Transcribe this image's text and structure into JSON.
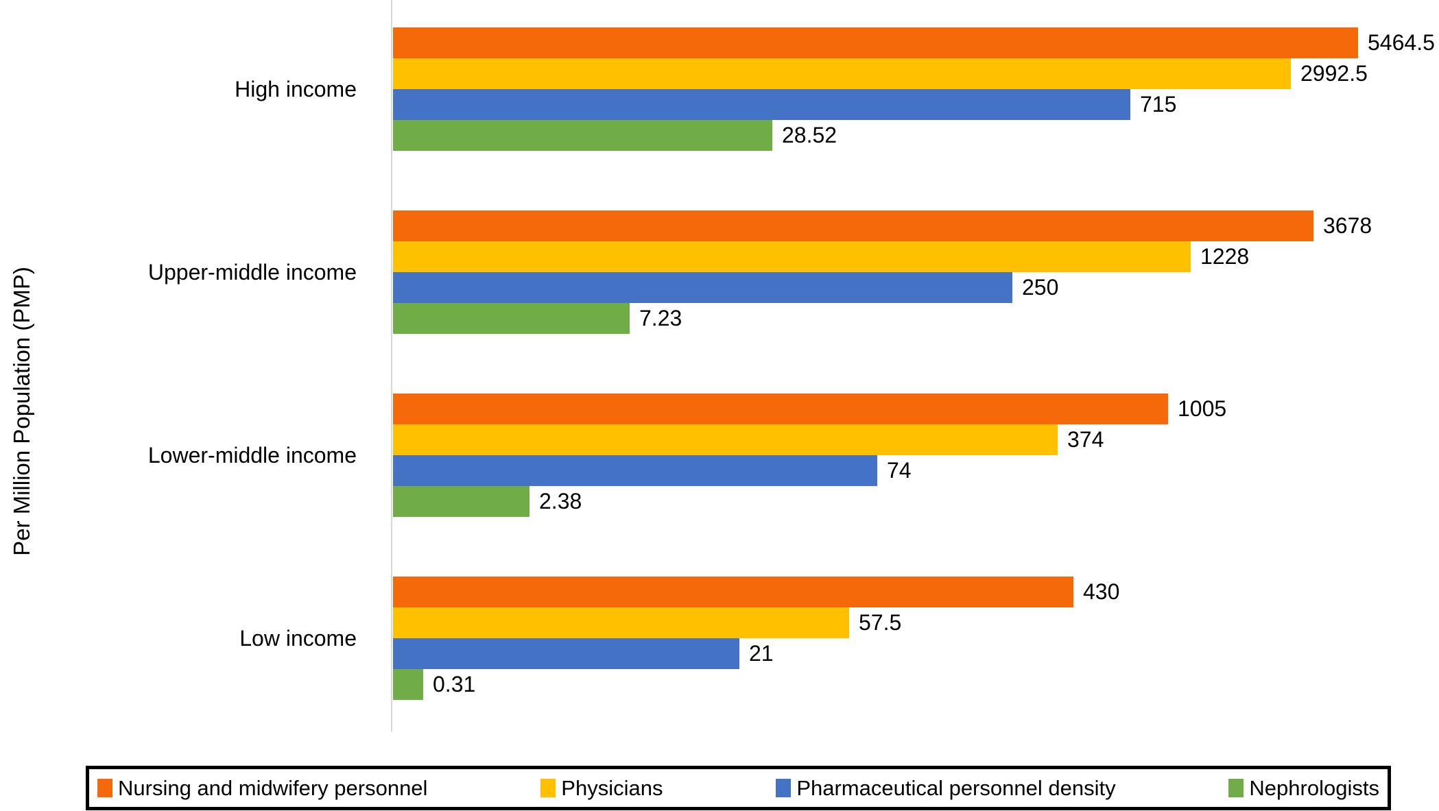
{
  "chart_data": {
    "type": "bar",
    "orientation": "horizontal",
    "title": "",
    "xlabel": "",
    "ylabel": "Per Million Population (PMP)",
    "grid": false,
    "x_axis_ticks_visible": false,
    "bar_length_scale": "log10(value+1)",
    "legend_position": "bottom-boxed",
    "axis_line_color": "#d8d8d8",
    "categories": [
      "High income",
      "Upper-middle income",
      "Lower-middle income",
      "Low income"
    ],
    "series": [
      {
        "name": "Nursing and midwifery personnel",
        "color": "#f5690a",
        "values": [
          5464.5,
          3678,
          1005,
          430
        ],
        "labels": [
          "5464.5",
          "3678",
          "1005",
          "430"
        ]
      },
      {
        "name": "Physicians",
        "color": "#ffc000",
        "values": [
          2992.5,
          1228,
          374,
          57.5
        ],
        "labels": [
          "2992.5",
          "1228",
          "374",
          "57.5"
        ]
      },
      {
        "name": "Pharmaceutical personnel density",
        "color": "#4472c4",
        "values": [
          715,
          250,
          74,
          21
        ],
        "labels": [
          "715",
          "250",
          "74",
          "21"
        ]
      },
      {
        "name": "Nephrologists",
        "color": "#70ad47",
        "values": [
          28.52,
          7.23,
          2.38,
          0.31
        ],
        "labels": [
          "28.52",
          "7.23",
          "2.38",
          "0.31"
        ]
      }
    ]
  }
}
